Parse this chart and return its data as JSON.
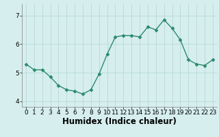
{
  "x": [
    0,
    1,
    2,
    3,
    4,
    5,
    6,
    7,
    8,
    9,
    10,
    11,
    12,
    13,
    14,
    15,
    16,
    17,
    18,
    19,
    20,
    21,
    22,
    23
  ],
  "y": [
    5.3,
    5.1,
    5.1,
    4.85,
    4.55,
    4.4,
    4.35,
    4.25,
    4.4,
    4.95,
    5.65,
    6.25,
    6.3,
    6.3,
    6.25,
    6.6,
    6.5,
    6.85,
    6.55,
    6.15,
    5.45,
    5.3,
    5.25,
    5.45
  ],
  "line_color": "#2a8a6e",
  "marker": "D",
  "marker_size": 2.5,
  "background_color": "#d6eeee",
  "grid_color": "#b8d8d8",
  "xlabel": "Humidex (Indice chaleur)",
  "ylim": [
    3.8,
    7.4
  ],
  "xlim": [
    -0.5,
    23.5
  ],
  "yticks": [
    4,
    5,
    6,
    7
  ],
  "xticks": [
    0,
    1,
    2,
    3,
    4,
    5,
    6,
    7,
    8,
    9,
    10,
    11,
    12,
    13,
    14,
    15,
    16,
    17,
    18,
    19,
    20,
    21,
    22,
    23
  ],
  "tick_labelsize": 6.5,
  "xlabel_fontsize": 8.5,
  "linewidth": 1.0
}
